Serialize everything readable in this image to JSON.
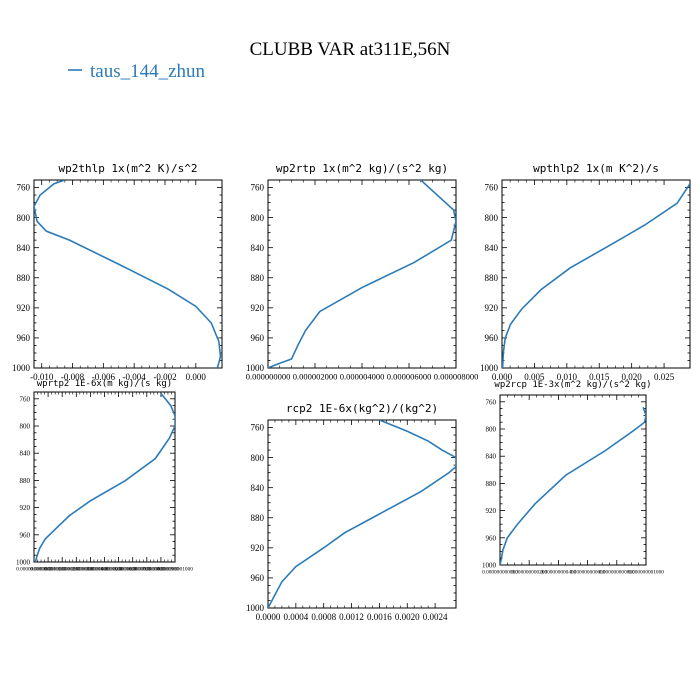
{
  "figure": {
    "title": "CLUBB VAR at311E,56N",
    "legend": {
      "label": "taus_144_zhun",
      "color": "#2b7bb9"
    }
  },
  "chart_data": [
    {
      "type": "line",
      "title": "wp2thlp  1x(m^2 K)/s^2",
      "xlim": [
        -0.0105,
        0.0017
      ],
      "ylim": [
        1000,
        750
      ],
      "xticks": [
        -0.01,
        -0.008,
        -0.006,
        -0.004,
        -0.002,
        0.0
      ],
      "xtick_labels": [
        "-0.010",
        "-0.008",
        "-0.006",
        "-0.004",
        "-0.002",
        "0.000"
      ],
      "yticks": [
        760,
        800,
        840,
        880,
        920,
        960,
        1000
      ],
      "ytick_labels": [
        "760",
        "800",
        "840",
        "880",
        "920",
        "960",
        "1000"
      ],
      "series": [
        {
          "x": [
            -0.0085,
            -0.0092,
            -0.0101,
            -0.0105,
            -0.0103,
            -0.0097,
            -0.0082,
            -0.005,
            -0.0018,
            0.0,
            0.001,
            0.0015,
            0.0016,
            0.0014
          ],
          "y": [
            750,
            755,
            770,
            785,
            805,
            818,
            830,
            862,
            895,
            918,
            940,
            965,
            985,
            1000
          ]
        }
      ]
    },
    {
      "type": "line",
      "title": "wp2rtp  1x(m^2 kg)/(s^2 kg)",
      "xlim": [
        0.0,
        8e-06
      ],
      "ylim": [
        1000,
        750
      ],
      "xticks": [
        0.0,
        2e-06,
        4e-06,
        6e-06,
        8e-06
      ],
      "xtick_labels": [
        "0.000000000",
        "0.000002000",
        "0.000004000",
        "0.000006000",
        "0.000008000"
      ],
      "yticks": [
        760,
        800,
        840,
        880,
        920,
        960,
        1000
      ],
      "ytick_labels": [
        "760",
        "800",
        "840",
        "880",
        "920",
        "960",
        "1000"
      ],
      "series": [
        {
          "x": [
            6.5e-06,
            7.2e-06,
            7.9e-06,
            8e-06,
            7.8e-06,
            6.2e-06,
            4e-06,
            2.2e-06,
            1.6e-06,
            1.3e-06,
            1e-06,
            3e-07,
            0.0
          ],
          "y": [
            750,
            770,
            790,
            805,
            830,
            860,
            893,
            925,
            950,
            968,
            988,
            996,
            1000
          ]
        }
      ]
    },
    {
      "type": "line",
      "title": "wpthlp2  1x(m K^2)/s",
      "xlim": [
        0.0,
        0.029
      ],
      "ylim": [
        1000,
        750
      ],
      "xticks": [
        0.0,
        0.005,
        0.01,
        0.015,
        0.02,
        0.025
      ],
      "xtick_labels": [
        "0.000",
        "0.005",
        "0.010",
        "0.015",
        "0.020",
        "0.025"
      ],
      "yticks": [
        760,
        800,
        840,
        880,
        920,
        960,
        1000
      ],
      "ytick_labels": [
        "760",
        "800",
        "840",
        "880",
        "920",
        "960",
        "1000"
      ],
      "series": [
        {
          "x": [
            0.029,
            0.027,
            0.022,
            0.017,
            0.0105,
            0.006,
            0.003,
            0.0013,
            0.0005,
            0.0002,
            0.0001
          ],
          "y": [
            755,
            781,
            810,
            835,
            867,
            896,
            922,
            942,
            960,
            980,
            1000
          ]
        }
      ]
    },
    {
      "type": "line",
      "title": "wprtp2  1E-6x(m kg)/(s kg)",
      "xlim": [
        0,
        1
      ],
      "ylim": [
        1000,
        750
      ],
      "xtick_labels": [
        "0.000000000000",
        "0.000000000100",
        "0.000000000200",
        "0.000000000300",
        "0.000000000400",
        "0.000000000500",
        "0.000000000600",
        "0.000000000700",
        "0.000000000800",
        "0.000000000900",
        "0.000000001000"
      ],
      "yticks": [
        760,
        800,
        840,
        880,
        920,
        960,
        1000
      ],
      "ytick_labels": [
        "760",
        "800",
        "840",
        "880",
        "920",
        "960",
        "1000"
      ],
      "series": [
        {
          "x": [
            0.9,
            0.97,
            1.0,
            1.0,
            0.96,
            0.86,
            0.65,
            0.4,
            0.25,
            0.15,
            0.08,
            0.04,
            0.02,
            0.01
          ],
          "y": [
            752,
            770,
            785,
            800,
            818,
            848,
            880,
            910,
            932,
            952,
            966,
            980,
            992,
            1000
          ]
        }
      ]
    },
    {
      "type": "line",
      "title": "rcp2  1E-6x(kg^2)/(kg^2)",
      "xlim": [
        0.0,
        0.0027
      ],
      "ylim": [
        1000,
        750
      ],
      "xticks": [
        0.0,
        0.0004,
        0.0008,
        0.0012,
        0.0016,
        0.002,
        0.0024
      ],
      "xtick_labels": [
        "0.0000",
        "0.0004",
        "0.0008",
        "0.0012",
        "0.0016",
        "0.0020",
        "0.0024"
      ],
      "yticks": [
        760,
        800,
        840,
        880,
        920,
        960,
        1000
      ],
      "ytick_labels": [
        "760",
        "800",
        "840",
        "880",
        "920",
        "960",
        "1000"
      ],
      "series": [
        {
          "x": [
            0.0016,
            0.002,
            0.0023,
            0.0025,
            0.0027,
            0.0027,
            0.0026,
            0.0022,
            0.0016,
            0.0011,
            0.0008,
            0.0004,
            0.0002,
            0.0
          ],
          "y": [
            750,
            765,
            778,
            790,
            800,
            812,
            820,
            845,
            875,
            900,
            920,
            945,
            965,
            1000
          ]
        }
      ]
    },
    {
      "type": "line",
      "title": "wp2rcp  1E-3x(m^2 kg)/(s^2 kg)",
      "xlim": [
        0,
        1
      ],
      "ylim": [
        1000,
        750
      ],
      "xtick_labels": [
        "0.000000000000",
        "0.000000000200",
        "0.000000000400",
        "0.000000000600",
        "0.000000000800",
        "0.000000001000"
      ],
      "yticks": [
        760,
        800,
        840,
        880,
        920,
        960,
        1000
      ],
      "ytick_labels": [
        "760",
        "800",
        "840",
        "880",
        "920",
        "960",
        "1000"
      ],
      "series": [
        {
          "x": [
            0.98,
            1.0,
            0.99,
            0.93,
            0.72,
            0.45,
            0.24,
            0.12,
            0.05,
            0.02,
            0.01,
            0.0
          ],
          "y": [
            768,
            780,
            790,
            800,
            832,
            868,
            910,
            940,
            960,
            978,
            990,
            1000
          ]
        }
      ]
    }
  ]
}
